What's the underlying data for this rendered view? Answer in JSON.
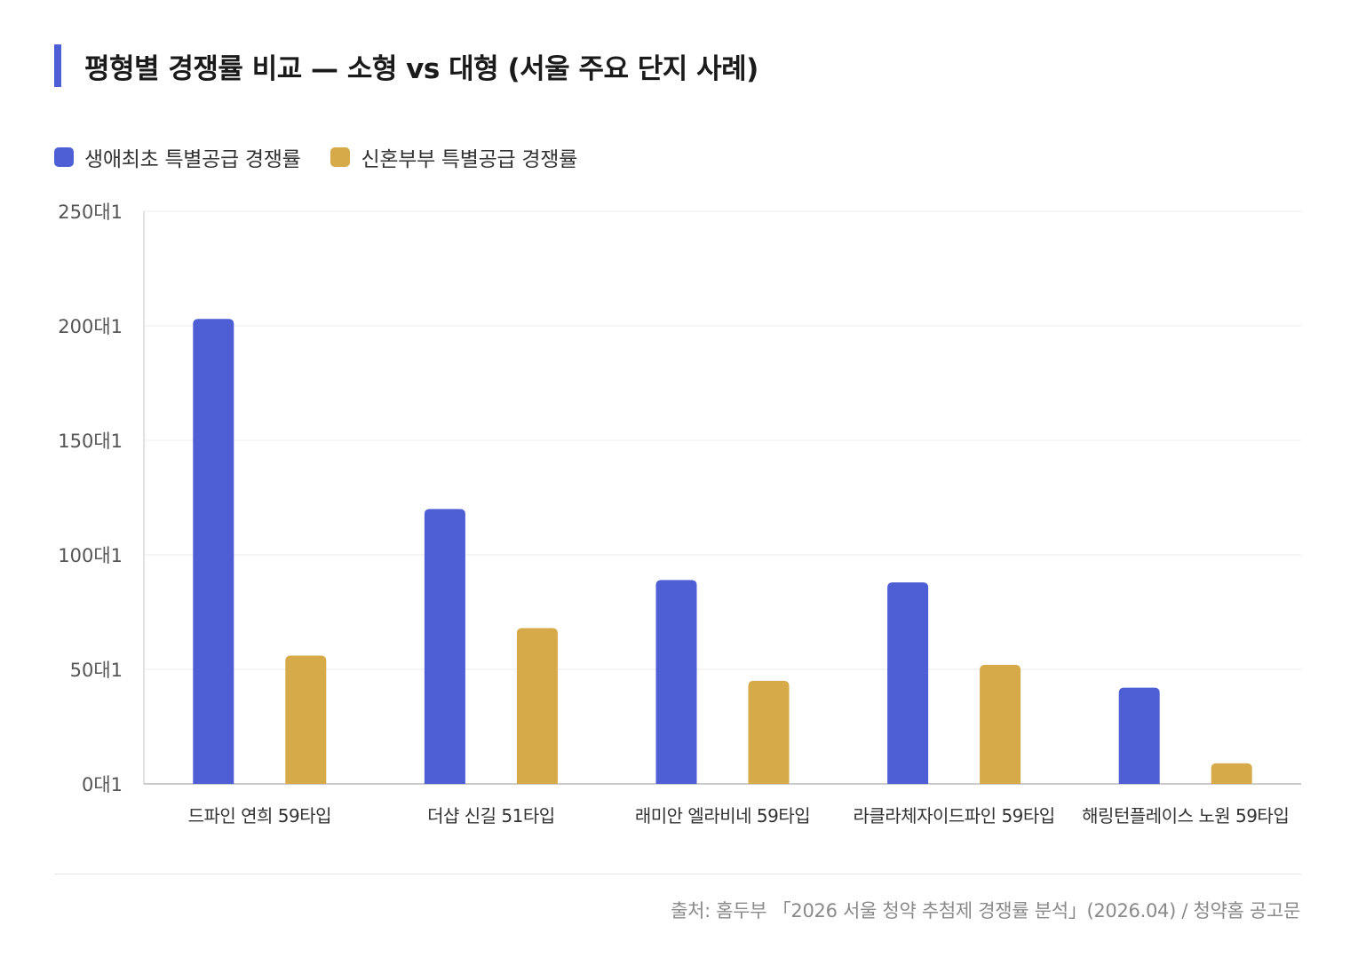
{
  "title": "평형별 경쟁률 비교 — 소형 vs 대형 (서울 주요 단지 사례)",
  "colors": {
    "accent": "#4e5fd6",
    "series1": "#4e5fd6",
    "series2": "#d6aa49"
  },
  "source": "출처: 홈두부 「2026 서울 청약 추첨제 경쟁률 분석」(2026.04) / 청약홈 공고문",
  "chart_data": {
    "type": "bar",
    "categories": [
      "드파인 연희 59타입",
      "더샵 신길 51타입",
      "래미안 엘라비네 59타입",
      "라클라체자이드파인 59타입",
      "해링턴플레이스 노원 59타입"
    ],
    "series": [
      {
        "name": "생애최초 특별공급 경쟁률",
        "color": "#4e5fd6",
        "values": [
          203,
          120,
          89,
          88,
          42
        ]
      },
      {
        "name": "신혼부부 특별공급 경쟁률",
        "color": "#d6aa49",
        "values": [
          56,
          68,
          45,
          52,
          9
        ]
      }
    ],
    "yticks": [
      "0대1",
      "50대1",
      "100대1",
      "150대1",
      "200대1",
      "250대1"
    ],
    "ylim": [
      0,
      250
    ],
    "grid": true,
    "legend": "top-left"
  }
}
